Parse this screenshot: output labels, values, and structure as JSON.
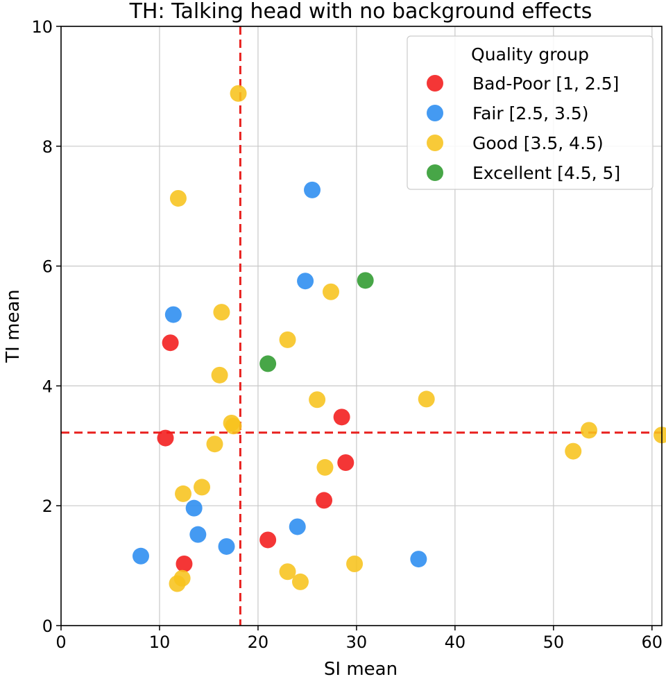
{
  "chart_data": {
    "type": "scatter",
    "title": "TH: Talking head with no background effects",
    "xlabel": "SI mean",
    "ylabel": "TI mean",
    "xlim": [
      0,
      61
    ],
    "ylim": [
      0,
      10
    ],
    "xticks": [
      0,
      10,
      20,
      30,
      40,
      50,
      60
    ],
    "yticks": [
      0,
      2,
      4,
      6,
      8,
      10
    ],
    "grid": true,
    "reference_lines": {
      "x": 18.2,
      "y": 3.22,
      "color": "#e8201e",
      "style": "dashed"
    },
    "legend": {
      "title": "Quality group",
      "placement": "top-right"
    },
    "series": [
      {
        "name": "Bad-Poor [1, 2.5]",
        "color": "#f21a1a",
        "points": [
          [
            11.1,
            4.72
          ],
          [
            10.6,
            3.13
          ],
          [
            12.5,
            1.03
          ],
          [
            21.0,
            1.43
          ],
          [
            26.7,
            2.09
          ],
          [
            28.9,
            2.72
          ],
          [
            28.5,
            3.48
          ]
        ]
      },
      {
        "name": "Fair [2.5, 3.5)",
        "color": "#2a8cf0",
        "points": [
          [
            11.4,
            5.19
          ],
          [
            8.1,
            1.16
          ],
          [
            13.5,
            1.96
          ],
          [
            13.9,
            1.52
          ],
          [
            16.8,
            1.32
          ],
          [
            24.0,
            1.65
          ],
          [
            25.5,
            7.27
          ],
          [
            24.8,
            5.75
          ],
          [
            36.3,
            1.11
          ]
        ]
      },
      {
        "name": "Good [3.5, 4.5)",
        "color": "#f7c31c",
        "points": [
          [
            18.0,
            8.88
          ],
          [
            11.9,
            7.13
          ],
          [
            16.3,
            5.23
          ],
          [
            16.1,
            4.18
          ],
          [
            17.3,
            3.38
          ],
          [
            17.5,
            3.33
          ],
          [
            15.6,
            3.03
          ],
          [
            12.4,
            2.2
          ],
          [
            14.3,
            2.31
          ],
          [
            12.3,
            0.79
          ],
          [
            11.8,
            0.7
          ],
          [
            23.0,
            4.77
          ],
          [
            27.4,
            5.57
          ],
          [
            26.0,
            3.77
          ],
          [
            26.8,
            2.64
          ],
          [
            23.0,
            0.9
          ],
          [
            24.3,
            0.73
          ],
          [
            29.8,
            1.03
          ],
          [
            37.1,
            3.78
          ],
          [
            53.6,
            3.26
          ],
          [
            52.0,
            2.91
          ],
          [
            61.0,
            3.18
          ]
        ]
      },
      {
        "name": "Excellent [4.5, 5]",
        "color": "#2e9a2e",
        "points": [
          [
            21.0,
            4.37
          ],
          [
            30.9,
            5.76
          ]
        ]
      }
    ]
  }
}
